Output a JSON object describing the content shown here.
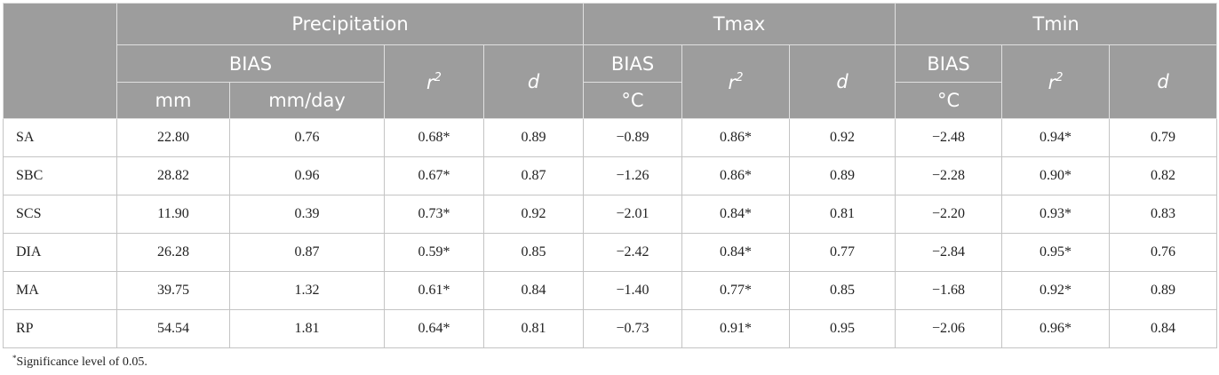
{
  "header": {
    "group_precip": "Precipitation",
    "group_tmax": "Tmax",
    "group_tmin": "Tmin",
    "bias": "BIAS",
    "r_base": "r",
    "r_exp": "2",
    "d": "d",
    "unit_mm": "mm",
    "unit_mmday": "mm/day",
    "unit_deg": "°C"
  },
  "rows": [
    {
      "name": "SA",
      "p_mm": "22.80",
      "p_mmday": "0.76",
      "p_r2": "0.68*",
      "p_d": "0.89",
      "tx_bias": "−0.89",
      "tx_r2": "0.86*",
      "tx_d": "0.92",
      "tn_bias": "−2.48",
      "tn_r2": "0.94*",
      "tn_d": "0.79"
    },
    {
      "name": "SBC",
      "p_mm": "28.82",
      "p_mmday": "0.96",
      "p_r2": "0.67*",
      "p_d": "0.87",
      "tx_bias": "−1.26",
      "tx_r2": "0.86*",
      "tx_d": "0.89",
      "tn_bias": "−2.28",
      "tn_r2": "0.90*",
      "tn_d": "0.82"
    },
    {
      "name": "SCS",
      "p_mm": "11.90",
      "p_mmday": "0.39",
      "p_r2": "0.73*",
      "p_d": "0.92",
      "tx_bias": "−2.01",
      "tx_r2": "0.84*",
      "tx_d": "0.81",
      "tn_bias": "−2.20",
      "tn_r2": "0.93*",
      "tn_d": "0.83"
    },
    {
      "name": "DIA",
      "p_mm": "26.28",
      "p_mmday": "0.87",
      "p_r2": "0.59*",
      "p_d": "0.85",
      "tx_bias": "−2.42",
      "tx_r2": "0.84*",
      "tx_d": "0.77",
      "tn_bias": "−2.84",
      "tn_r2": "0.95*",
      "tn_d": "0.76"
    },
    {
      "name": "MA",
      "p_mm": "39.75",
      "p_mmday": "1.32",
      "p_r2": "0.61*",
      "p_d": "0.84",
      "tx_bias": "−1.40",
      "tx_r2": "0.77*",
      "tx_d": "0.85",
      "tn_bias": "−1.68",
      "tn_r2": "0.92*",
      "tn_d": "0.89"
    },
    {
      "name": "RP",
      "p_mm": "54.54",
      "p_mmday": "1.81",
      "p_r2": "0.64*",
      "p_d": "0.81",
      "tx_bias": "−0.73",
      "tx_r2": "0.91*",
      "tx_d": "0.95",
      "tn_bias": "−2.06",
      "tn_r2": "0.96*",
      "tn_d": "0.84"
    }
  ],
  "footnote": {
    "mark": "*",
    "text": "Significance level of 0.05."
  }
}
